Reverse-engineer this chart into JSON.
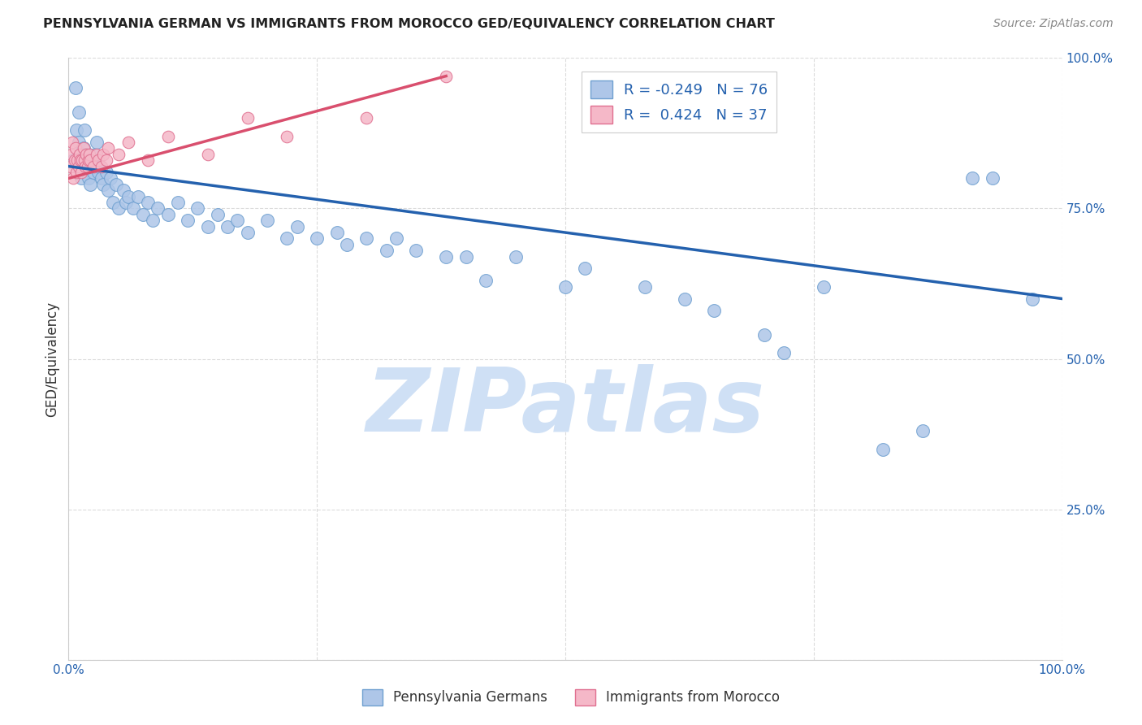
{
  "title": "PENNSYLVANIA GERMAN VS IMMIGRANTS FROM MOROCCO GED/EQUIVALENCY CORRELATION CHART",
  "source": "Source: ZipAtlas.com",
  "ylabel": "GED/Equivalency",
  "xlim": [
    0.0,
    1.0
  ],
  "ylim": [
    0.0,
    1.0
  ],
  "blue_R": -0.249,
  "blue_N": 76,
  "pink_R": 0.424,
  "pink_N": 37,
  "blue_color": "#aec6e8",
  "blue_edge_color": "#6fa0d0",
  "blue_line_color": "#2461ae",
  "pink_color": "#f5b8c8",
  "pink_edge_color": "#e07090",
  "pink_line_color": "#d94f6e",
  "blue_line_x0": 0.0,
  "blue_line_y0": 0.82,
  "blue_line_x1": 1.0,
  "blue_line_y1": 0.6,
  "pink_line_x0": 0.0,
  "pink_line_y0": 0.8,
  "pink_line_x1": 0.38,
  "pink_line_y1": 0.97,
  "blue_x": [
    0.005,
    0.007,
    0.008,
    0.01,
    0.01,
    0.01,
    0.012,
    0.013,
    0.015,
    0.015,
    0.016,
    0.017,
    0.018,
    0.02,
    0.02,
    0.021,
    0.022,
    0.025,
    0.026,
    0.027,
    0.028,
    0.03,
    0.031,
    0.033,
    0.035,
    0.038,
    0.04,
    0.042,
    0.045,
    0.048,
    0.05,
    0.055,
    0.058,
    0.06,
    0.065,
    0.07,
    0.075,
    0.08,
    0.085,
    0.09,
    0.1,
    0.11,
    0.12,
    0.13,
    0.14,
    0.15,
    0.16,
    0.17,
    0.18,
    0.2,
    0.22,
    0.23,
    0.25,
    0.27,
    0.28,
    0.3,
    0.32,
    0.33,
    0.35,
    0.38,
    0.4,
    0.42,
    0.45,
    0.5,
    0.52,
    0.58,
    0.62,
    0.65,
    0.7,
    0.72,
    0.76,
    0.82,
    0.86,
    0.91,
    0.93,
    0.97
  ],
  "blue_y": [
    0.83,
    0.95,
    0.88,
    0.82,
    0.86,
    0.91,
    0.84,
    0.8,
    0.82,
    0.85,
    0.88,
    0.84,
    0.82,
    0.8,
    0.84,
    0.82,
    0.79,
    0.81,
    0.82,
    0.84,
    0.86,
    0.81,
    0.82,
    0.8,
    0.79,
    0.81,
    0.78,
    0.8,
    0.76,
    0.79,
    0.75,
    0.78,
    0.76,
    0.77,
    0.75,
    0.77,
    0.74,
    0.76,
    0.73,
    0.75,
    0.74,
    0.76,
    0.73,
    0.75,
    0.72,
    0.74,
    0.72,
    0.73,
    0.71,
    0.73,
    0.7,
    0.72,
    0.7,
    0.71,
    0.69,
    0.7,
    0.68,
    0.7,
    0.68,
    0.67,
    0.67,
    0.63,
    0.67,
    0.62,
    0.65,
    0.62,
    0.6,
    0.58,
    0.54,
    0.51,
    0.62,
    0.35,
    0.38,
    0.8,
    0.8,
    0.6
  ],
  "pink_x": [
    0.002,
    0.003,
    0.004,
    0.005,
    0.006,
    0.007,
    0.008,
    0.009,
    0.01,
    0.011,
    0.012,
    0.013,
    0.014,
    0.015,
    0.016,
    0.017,
    0.018,
    0.019,
    0.02,
    0.021,
    0.022,
    0.025,
    0.028,
    0.03,
    0.033,
    0.035,
    0.038,
    0.04,
    0.05,
    0.06,
    0.08,
    0.1,
    0.14,
    0.18,
    0.22,
    0.3,
    0.38
  ],
  "pink_y": [
    0.82,
    0.84,
    0.86,
    0.8,
    0.83,
    0.85,
    0.81,
    0.83,
    0.82,
    0.84,
    0.83,
    0.81,
    0.83,
    0.85,
    0.83,
    0.82,
    0.84,
    0.82,
    0.83,
    0.84,
    0.83,
    0.82,
    0.84,
    0.83,
    0.82,
    0.84,
    0.83,
    0.85,
    0.84,
    0.86,
    0.83,
    0.87,
    0.84,
    0.9,
    0.87,
    0.9,
    0.97
  ],
  "watermark_text": "ZIPatlas",
  "watermark_color": "#cfe0f5",
  "grid_color": "#d8d8d8",
  "background_color": "#ffffff",
  "tick_color": "#2461ae",
  "title_color": "#222222",
  "source_color": "#888888",
  "ylabel_color": "#333333"
}
